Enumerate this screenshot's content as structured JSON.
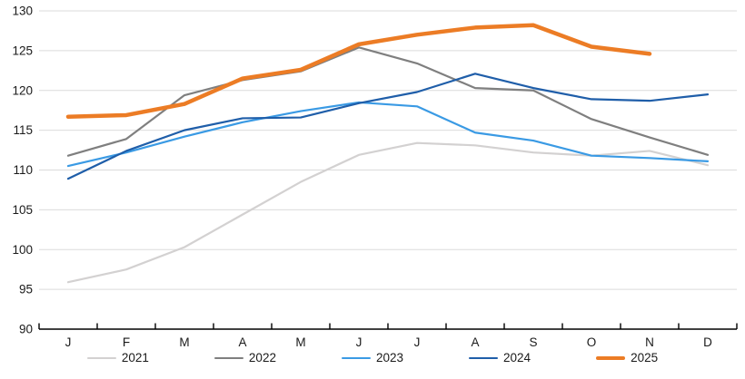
{
  "chart_data": {
    "type": "line",
    "title": "",
    "x_categories": [
      "J",
      "F",
      "M",
      "A",
      "M",
      "J",
      "J",
      "A",
      "S",
      "O",
      "N",
      "D"
    ],
    "y_ticks": [
      90,
      95,
      100,
      105,
      110,
      115,
      120,
      125,
      130
    ],
    "ylim": [
      90,
      130
    ],
    "grid": true,
    "gridline_color": "#DBDBDB",
    "axis_color": "#000000",
    "legend_position": "bottom",
    "series": [
      {
        "name": "2021",
        "color": "#D3D1D1",
        "width": 2.2,
        "values": [
          95.9,
          97.5,
          100.3,
          104.4,
          108.5,
          111.9,
          113.4,
          113.1,
          112.2,
          111.8,
          112.4,
          110.6
        ]
      },
      {
        "name": "2022",
        "color": "#7F7F7F",
        "width": 2.2,
        "values": [
          111.8,
          113.9,
          119.4,
          121.3,
          122.4,
          125.4,
          123.4,
          120.3,
          120.0,
          116.4,
          114.1,
          111.9
        ]
      },
      {
        "name": "2023",
        "color": "#3A9AE4",
        "width": 2.2,
        "values": [
          110.5,
          112.2,
          114.2,
          116.0,
          117.4,
          118.5,
          118.0,
          114.7,
          113.7,
          111.8,
          111.5,
          111.1
        ]
      },
      {
        "name": "2024",
        "color": "#1F5EA9",
        "width": 2.2,
        "values": [
          108.9,
          112.4,
          115.0,
          116.5,
          116.6,
          118.4,
          119.8,
          122.1,
          120.3,
          118.9,
          118.7,
          119.5
        ]
      },
      {
        "name": "2025",
        "color": "#EC7C25",
        "width": 4.5,
        "values": [
          116.7,
          116.9,
          118.3,
          121.5,
          122.6,
          125.8,
          127.0,
          127.9,
          128.2,
          125.5,
          124.6,
          null
        ]
      }
    ]
  }
}
